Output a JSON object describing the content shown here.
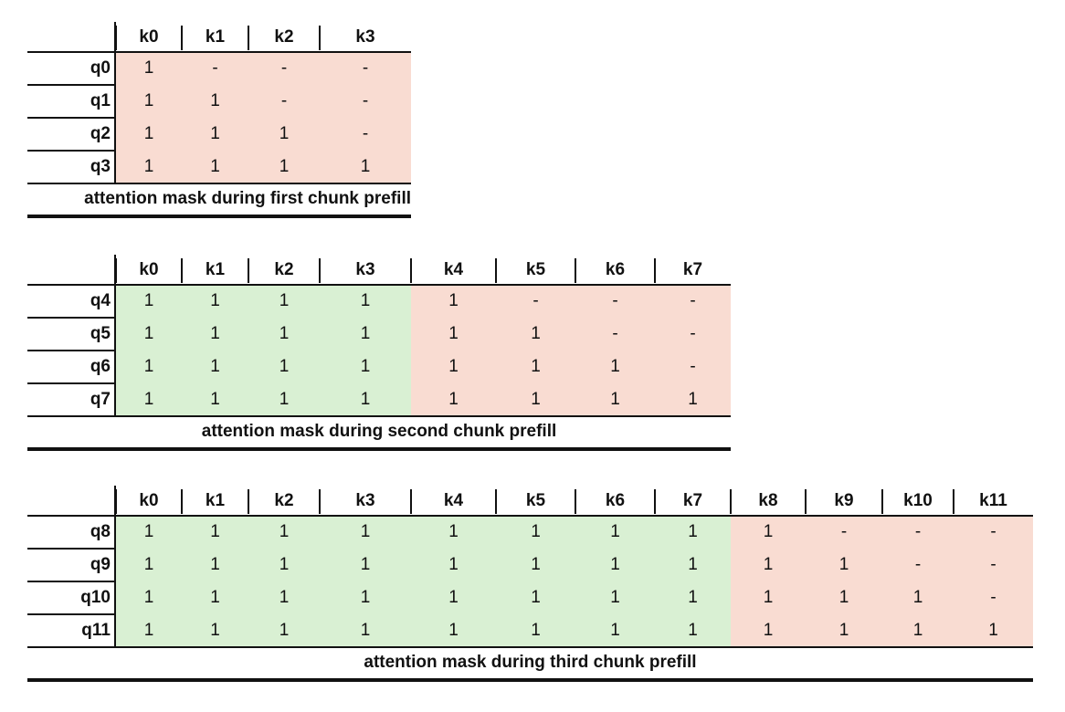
{
  "tables": [
    {
      "caption": "attention mask during first chunk prefill",
      "columns": [
        "k0",
        "k1",
        "k2",
        "k3"
      ],
      "rows": [
        {
          "label": "q0",
          "cells": [
            "1",
            "-",
            "-",
            "-"
          ]
        },
        {
          "label": "q1",
          "cells": [
            "1",
            "1",
            "-",
            "-"
          ]
        },
        {
          "label": "q2",
          "cells": [
            "1",
            "1",
            "1",
            "-"
          ]
        },
        {
          "label": "q3",
          "cells": [
            "1",
            "1",
            "1",
            "1"
          ]
        }
      ],
      "past_key_count": 0
    },
    {
      "caption": "attention mask during second chunk prefill",
      "columns": [
        "k0",
        "k1",
        "k2",
        "k3",
        "k4",
        "k5",
        "k6",
        "k7"
      ],
      "rows": [
        {
          "label": "q4",
          "cells": [
            "1",
            "1",
            "1",
            "1",
            "1",
            "-",
            "-",
            "-"
          ]
        },
        {
          "label": "q5",
          "cells": [
            "1",
            "1",
            "1",
            "1",
            "1",
            "1",
            "-",
            "-"
          ]
        },
        {
          "label": "q6",
          "cells": [
            "1",
            "1",
            "1",
            "1",
            "1",
            "1",
            "1",
            "-"
          ]
        },
        {
          "label": "q7",
          "cells": [
            "1",
            "1",
            "1",
            "1",
            "1",
            "1",
            "1",
            "1"
          ]
        }
      ],
      "past_key_count": 4
    },
    {
      "caption": "attention mask during third chunk prefill",
      "columns": [
        "k0",
        "k1",
        "k2",
        "k3",
        "k4",
        "k5",
        "k6",
        "k7",
        "k8",
        "k9",
        "k10",
        "k11"
      ],
      "rows": [
        {
          "label": "q8",
          "cells": [
            "1",
            "1",
            "1",
            "1",
            "1",
            "1",
            "1",
            "1",
            "1",
            "-",
            "-",
            "-"
          ]
        },
        {
          "label": "q9",
          "cells": [
            "1",
            "1",
            "1",
            "1",
            "1",
            "1",
            "1",
            "1",
            "1",
            "1",
            "-",
            "-"
          ]
        },
        {
          "label": "q10",
          "cells": [
            "1",
            "1",
            "1",
            "1",
            "1",
            "1",
            "1",
            "1",
            "1",
            "1",
            "1",
            "-"
          ]
        },
        {
          "label": "q11",
          "cells": [
            "1",
            "1",
            "1",
            "1",
            "1",
            "1",
            "1",
            "1",
            "1",
            "1",
            "1",
            "1"
          ]
        }
      ],
      "past_key_count": 8
    }
  ],
  "colors": {
    "past_chunk_fill": "#d9f0d3",
    "current_chunk_fill": "#f9dcd2",
    "rule": "#111111"
  }
}
